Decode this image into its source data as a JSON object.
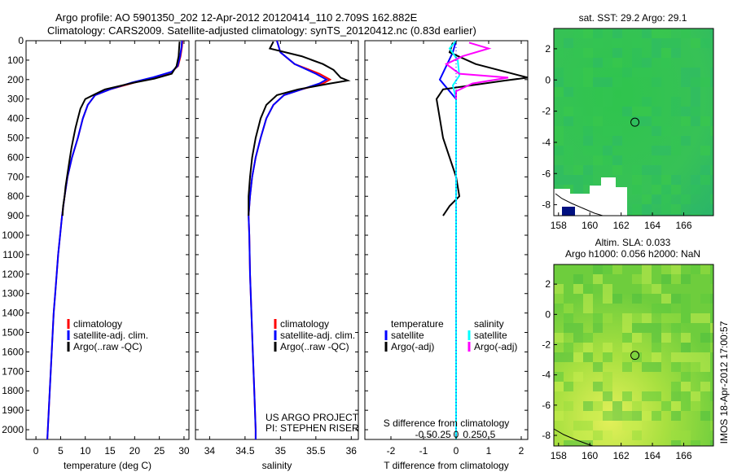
{
  "title_line1": "Argo profile: AO 5901350_202 12-Apr-2012 20120414_110 2.709S 162.882E",
  "title_line2": "Climatology: CARS2009. Satellite-adjusted climatology: synTS_20120412.nc (0.83d earlier)",
  "sst_title": "sat. SST: 29.2 Argo: 29.1",
  "sla_title1": "Altim. SLA: 0.033",
  "sla_title2": "Argo h1000: 0.056 h2000: NaN",
  "stamp": "IMOS 18-Apr-2012 17:00:57",
  "project_line1": "US ARGO PROJECT",
  "project_line2": "PI: STEPHEN RISER",
  "colors": {
    "climatology": "#ff0000",
    "satellite": "#0000ff",
    "argo": "#000000",
    "argo_adj_s": "#ff00ff",
    "satellite_s": "#00ffff"
  },
  "chart_data": [
    {
      "type": "line",
      "xlabel": "temperature (deg C)",
      "xticks": [
        0,
        5,
        10,
        15,
        20,
        25,
        30
      ],
      "xlim": [
        -2,
        31
      ],
      "ylim": [
        0,
        2050
      ],
      "yticks": [
        0,
        100,
        200,
        300,
        400,
        500,
        600,
        700,
        800,
        900,
        1000,
        1100,
        1200,
        1300,
        1400,
        1500,
        1600,
        1700,
        1800,
        1900,
        2000
      ],
      "legend": [
        "climatology",
        "satellite-adj. clim.",
        "Argo(..raw -QC)"
      ],
      "series": [
        {
          "name": "climatology",
          "color": "#ff0000",
          "points": [
            [
              29.7,
              0
            ],
            [
              29.6,
              30
            ],
            [
              29.3,
              80
            ],
            [
              28.8,
              130
            ],
            [
              27.5,
              160
            ],
            [
              24,
              190
            ],
            [
              20,
              215
            ],
            [
              15,
              250
            ],
            [
              12,
              280
            ],
            [
              10.5,
              330
            ],
            [
              9.5,
              400
            ],
            [
              8.5,
              500
            ],
            [
              7.3,
              600
            ],
            [
              6.4,
              700
            ],
            [
              5.8,
              800
            ],
            [
              5.3,
              900
            ],
            [
              4.9,
              1000
            ],
            [
              4.5,
              1100
            ],
            [
              4.2,
              1200
            ],
            [
              3.9,
              1300
            ],
            [
              3.6,
              1400
            ],
            [
              3.4,
              1500
            ],
            [
              3.2,
              1600
            ],
            [
              3.0,
              1700
            ],
            [
              2.8,
              1800
            ],
            [
              2.6,
              1900
            ],
            [
              2.4,
              2000
            ],
            [
              2.3,
              2050
            ]
          ]
        },
        {
          "name": "satellite-adj. clim.",
          "color": "#0000ff",
          "points": [
            [
              29.6,
              0
            ],
            [
              29.5,
              30
            ],
            [
              29.2,
              80
            ],
            [
              28.7,
              130
            ],
            [
              27.5,
              160
            ],
            [
              23.5,
              190
            ],
            [
              19.5,
              215
            ],
            [
              15,
              250
            ],
            [
              12,
              280
            ],
            [
              10.5,
              330
            ],
            [
              9.5,
              400
            ],
            [
              8.5,
              500
            ],
            [
              7.3,
              600
            ],
            [
              6.4,
              700
            ],
            [
              5.8,
              800
            ],
            [
              5.3,
              900
            ],
            [
              4.9,
              1000
            ],
            [
              4.5,
              1100
            ],
            [
              4.2,
              1200
            ],
            [
              3.9,
              1300
            ],
            [
              3.6,
              1400
            ],
            [
              3.4,
              1500
            ],
            [
              3.2,
              1600
            ],
            [
              3.0,
              1700
            ],
            [
              2.8,
              1800
            ],
            [
              2.6,
              1900
            ],
            [
              2.4,
              2000
            ],
            [
              2.3,
              2050
            ]
          ]
        },
        {
          "name": "Argo(..raw -QC)",
          "color": "#000000",
          "points": [
            [
              29.1,
              5
            ],
            [
              29.0,
              40
            ],
            [
              28.9,
              80
            ],
            [
              28.5,
              130
            ],
            [
              27.5,
              170
            ],
            [
              24,
              195
            ],
            [
              20,
              215
            ],
            [
              14,
              250
            ],
            [
              12,
              275
            ],
            [
              10,
              300
            ],
            [
              9,
              350
            ],
            [
              8.5,
              400
            ],
            [
              8,
              450
            ],
            [
              7.6,
              500
            ],
            [
              7.2,
              550
            ],
            [
              6.9,
              600
            ],
            [
              6.6,
              650
            ],
            [
              6.3,
              700
            ],
            [
              6.0,
              750
            ],
            [
              5.8,
              800
            ],
            [
              5.5,
              850
            ],
            [
              5.4,
              900
            ]
          ]
        }
      ]
    },
    {
      "type": "line",
      "xlabel": "salinity",
      "xticks": [
        34,
        34.5,
        35,
        35.5,
        36
      ],
      "xlim": [
        33.8,
        36.1
      ],
      "ylim": [
        0,
        2050
      ],
      "legend": [
        "climatology",
        "satellite-adj. clim.",
        "Argo(..raw -QC)"
      ],
      "series": [
        {
          "name": "climatology",
          "color": "#ff0000",
          "points": [
            [
              34.95,
              0
            ],
            [
              35.0,
              60
            ],
            [
              35.2,
              120
            ],
            [
              35.55,
              170
            ],
            [
              35.7,
              200
            ],
            [
              35.6,
              220
            ],
            [
              35.3,
              250
            ],
            [
              35.05,
              280
            ],
            [
              34.9,
              330
            ],
            [
              34.8,
              400
            ],
            [
              34.72,
              500
            ],
            [
              34.65,
              600
            ],
            [
              34.6,
              700
            ],
            [
              34.57,
              800
            ],
            [
              34.55,
              900
            ],
            [
              34.56,
              1000
            ],
            [
              34.57,
              1200
            ],
            [
              34.59,
              1400
            ],
            [
              34.61,
              1600
            ],
            [
              34.63,
              1800
            ],
            [
              34.65,
              2000
            ],
            [
              34.65,
              2050
            ]
          ]
        },
        {
          "name": "satellite-adj. clim.",
          "color": "#0000ff",
          "points": [
            [
              34.95,
              0
            ],
            [
              35.0,
              60
            ],
            [
              35.2,
              120
            ],
            [
              35.5,
              170
            ],
            [
              35.65,
              200
            ],
            [
              35.55,
              220
            ],
            [
              35.3,
              250
            ],
            [
              35.05,
              280
            ],
            [
              34.9,
              330
            ],
            [
              34.8,
              400
            ],
            [
              34.72,
              500
            ],
            [
              34.65,
              600
            ],
            [
              34.6,
              700
            ],
            [
              34.57,
              800
            ],
            [
              34.55,
              900
            ],
            [
              34.56,
              1000
            ],
            [
              34.57,
              1200
            ],
            [
              34.59,
              1400
            ],
            [
              34.61,
              1600
            ],
            [
              34.63,
              1800
            ],
            [
              34.65,
              2000
            ],
            [
              34.65,
              2050
            ]
          ]
        },
        {
          "name": "Argo(..raw -QC)",
          "color": "#000000",
          "points": [
            [
              34.9,
              5
            ],
            [
              34.85,
              40
            ],
            [
              35.3,
              80
            ],
            [
              35.6,
              120
            ],
            [
              35.75,
              150
            ],
            [
              35.85,
              190
            ],
            [
              35.95,
              205
            ],
            [
              35.7,
              220
            ],
            [
              35.25,
              250
            ],
            [
              34.95,
              280
            ],
            [
              34.8,
              330
            ],
            [
              34.72,
              400
            ],
            [
              34.65,
              500
            ],
            [
              34.6,
              600
            ],
            [
              34.57,
              700
            ],
            [
              34.55,
              800
            ],
            [
              34.55,
              900
            ]
          ]
        }
      ]
    },
    {
      "type": "line",
      "xlabel": "T difference from climatology",
      "xlabel2": "S difference from climatology",
      "xticks": [
        -2,
        -1,
        0,
        1,
        2
      ],
      "xticks_s": [
        "-0.5",
        "-0.25",
        "0",
        "0.25",
        "0.5"
      ],
      "xlim": [
        -2.8,
        2.2
      ],
      "ylim": [
        0,
        2050
      ],
      "legend_left_title": "temperature",
      "legend_right_title": "salinity",
      "legend_left": [
        "satellite",
        "Argo(-adj)"
      ],
      "legend_right": [
        "satellite",
        "Argo(-adj)"
      ],
      "series": [
        {
          "name": "satellite",
          "color": "#0000ff",
          "points": [
            [
              0,
              0
            ],
            [
              -0.1,
              60
            ],
            [
              -0.3,
              130
            ],
            [
              -0.5,
              200
            ],
            [
              -0.2,
              260
            ],
            [
              0,
              300
            ],
            [
              0,
              2050
            ]
          ]
        },
        {
          "name": "Argo(-adj)",
          "color": "#000000",
          "points": [
            [
              -0.1,
              10
            ],
            [
              -0.2,
              60
            ],
            [
              0.6,
              120
            ],
            [
              2.2,
              190
            ],
            [
              1.5,
              205
            ],
            [
              -0.4,
              250
            ],
            [
              -0.6,
              300
            ],
            [
              -0.5,
              400
            ],
            [
              -0.4,
              500
            ],
            [
              -0.2,
              600
            ],
            [
              0,
              700
            ],
            [
              0.1,
              800
            ],
            [
              -0.2,
              850
            ],
            [
              -0.4,
              900
            ]
          ]
        },
        {
          "name": "satellite S",
          "color": "#00ffff",
          "points": [
            [
              0,
              0
            ],
            [
              -0.2,
              40
            ],
            [
              0.05,
              100
            ],
            [
              0.1,
              180
            ],
            [
              -0.1,
              230
            ],
            [
              0,
              300
            ],
            [
              0,
              2050
            ]
          ]
        },
        {
          "name": "Argo(-adj) S",
          "color": "#ff00ff",
          "points": [
            [
              0.4,
              10
            ],
            [
              1.0,
              40
            ],
            [
              0.2,
              80
            ],
            [
              -0.3,
              120
            ],
            [
              0.1,
              170
            ],
            [
              1.6,
              190
            ],
            [
              0.5,
              220
            ],
            [
              0,
              260
            ],
            [
              0,
              300
            ]
          ]
        }
      ]
    },
    {
      "type": "heatmap",
      "title": "sat. SST: 29.2 Argo: 29.1",
      "xticks": [
        158,
        160,
        162,
        164,
        166
      ],
      "yticks": [
        2,
        0,
        -2,
        -4,
        -6,
        -8
      ],
      "xlim": [
        157.7,
        167.9
      ],
      "ylim": [
        -8.7,
        3.3
      ],
      "marker": [
        162.882,
        -2.709
      ]
    },
    {
      "type": "heatmap",
      "title": "Altim. SLA: 0.033",
      "xticks": [
        158,
        160,
        162,
        164,
        166
      ],
      "yticks": [
        2,
        0,
        -2,
        -4,
        -6,
        -8
      ],
      "xlim": [
        157.7,
        167.9
      ],
      "ylim": [
        -8.7,
        3.3
      ],
      "marker": [
        162.882,
        -2.709
      ]
    }
  ]
}
